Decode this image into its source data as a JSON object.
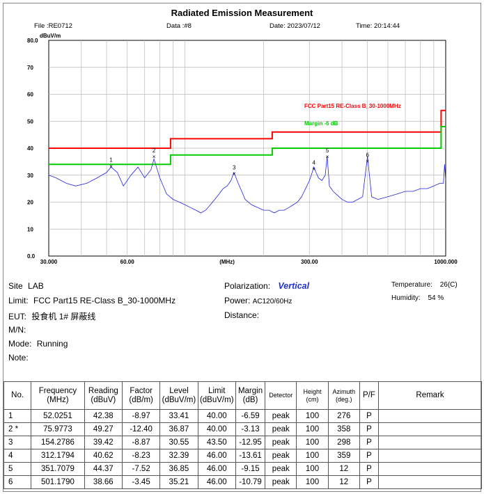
{
  "title": "Radiated Emission Measurement",
  "header": {
    "file": "File :RE0712",
    "data": "Data :#8",
    "date": "Date: 2023/07/12",
    "time": "Time: 20:14:44"
  },
  "chart_data": {
    "type": "line",
    "title": "Radiated Emission Measurement",
    "ylabel": "dBuV/m",
    "xlabel": "(MHz)",
    "x_scale": "log",
    "xlim": [
      30,
      1000
    ],
    "ylim": [
      0,
      80
    ],
    "yticks": [
      0,
      10,
      20,
      30,
      40,
      50,
      60,
      70,
      80
    ],
    "ytick_labels": [
      "0.0",
      "10",
      "20",
      "30",
      "40",
      "50",
      "60",
      "70",
      "80.0"
    ],
    "xticks": [
      30,
      60,
      300,
      1000
    ],
    "xtick_labels": [
      "30.000",
      "60.00",
      "300.00",
      "1000.000"
    ],
    "grid": true,
    "series": [
      {
        "name": "FCC Part15 RE-Class B_30-1000MHz",
        "color": "#ff0000",
        "x": [
          30,
          88,
          88,
          216,
          216,
          960,
          960,
          1000
        ],
        "y": [
          40,
          40,
          43.5,
          43.5,
          46,
          46,
          54,
          54
        ]
      },
      {
        "name": "Margin -6 dB",
        "color": "#00cc00",
        "x": [
          30,
          88,
          88,
          216,
          216,
          960,
          960,
          1000
        ],
        "y": [
          34,
          34,
          37.5,
          37.5,
          40,
          40,
          48,
          48
        ]
      },
      {
        "name": "",
        "color": "#2222dd",
        "x": [
          30,
          32,
          35,
          38,
          42,
          46,
          50,
          52,
          55,
          58,
          62,
          66,
          70,
          74,
          76,
          80,
          85,
          90,
          95,
          100,
          105,
          110,
          115,
          120,
          125,
          130,
          135,
          140,
          145,
          150,
          154,
          160,
          165,
          170,
          180,
          190,
          200,
          210,
          220,
          230,
          240,
          250,
          260,
          270,
          280,
          290,
          300,
          305,
          312,
          318,
          325,
          335,
          345,
          351,
          358,
          370,
          380,
          390,
          400,
          420,
          440,
          460,
          480,
          501,
          520,
          550,
          600,
          650,
          700,
          750,
          800,
          850,
          900,
          950,
          980,
          990,
          1000
        ],
        "y": [
          30,
          29,
          27,
          26,
          27,
          29,
          31,
          33,
          31,
          26,
          30,
          33,
          29,
          32,
          36,
          29,
          23,
          21,
          20,
          19,
          18,
          17,
          16,
          17,
          19,
          21,
          23,
          25,
          26,
          28,
          31,
          27,
          24,
          21,
          19,
          18,
          17,
          17,
          16,
          17,
          17,
          18,
          19,
          20,
          22,
          25,
          28,
          30,
          33,
          31,
          29,
          28,
          30,
          37,
          26,
          24,
          23,
          22,
          21,
          20,
          20,
          21,
          22,
          37,
          22,
          21,
          22,
          23,
          24,
          24,
          25,
          25,
          26,
          27,
          27,
          34,
          28
        ]
      }
    ],
    "markers": [
      {
        "label": "1",
        "x": 52.0251,
        "y": 33.41
      },
      {
        "label": "2",
        "x": 75.9773,
        "y": 36.87
      },
      {
        "label": "3",
        "x": 154.2786,
        "y": 30.55
      },
      {
        "label": "4",
        "x": 312.1794,
        "y": 32.39
      },
      {
        "label": "5",
        "x": 351.7079,
        "y": 36.85
      },
      {
        "label": "6",
        "x": 501.179,
        "y": 35.21
      }
    ],
    "legend": [
      "FCC Part15 RE-Class B_30-1000MHz",
      "Margin -6 dB"
    ],
    "legend_position": "right"
  },
  "info": {
    "site_label": "Site",
    "site": "LAB",
    "limit_label": "Limit:",
    "limit": "FCC Part15 RE-Class B_30-1000MHz",
    "eut_label": "EUT:",
    "eut": "投食机 1# 屏蔽线",
    "mn_label": "M/N:",
    "mode_label": "Mode:",
    "mode": "Running",
    "note_label": "Note:",
    "polarization_label": "Polarization:",
    "polarization": "Vertical",
    "power_label": "Power:",
    "power": "AC120/60Hz",
    "distance_label": "Distance:",
    "temperature_label": "Temperature:",
    "temperature": "26(C)",
    "humidity_label": "Humidity:",
    "humidity": "54 %"
  },
  "table": {
    "headers": [
      "No.",
      "Frequency (MHz)",
      "Reading (dBuV)",
      "Factor (dB/m)",
      "Level (dBuV/m)",
      "Limit (dBuV/m)",
      "Margin (dB)",
      "Detector",
      "Height (cm)",
      "Azimuth (deg.)",
      "P/F",
      "Remark"
    ],
    "rows": [
      [
        "1",
        "52.0251",
        "42.38",
        "-8.97",
        "33.41",
        "40.00",
        "-6.59",
        "peak",
        "100",
        "276",
        "P",
        ""
      ],
      [
        "2 *",
        "75.9773",
        "49.27",
        "-12.40",
        "36.87",
        "40.00",
        "-3.13",
        "peak",
        "100",
        "358",
        "P",
        ""
      ],
      [
        "3",
        "154.2786",
        "39.42",
        "-8.87",
        "30.55",
        "43.50",
        "-12.95",
        "peak",
        "100",
        "298",
        "P",
        ""
      ],
      [
        "4",
        "312.1794",
        "40.62",
        "-8.23",
        "32.39",
        "46.00",
        "-13.61",
        "peak",
        "100",
        "359",
        "P",
        ""
      ],
      [
        "5",
        "351.7079",
        "44.37",
        "-7.52",
        "36.85",
        "46.00",
        "-9.15",
        "peak",
        "100",
        "12",
        "P",
        ""
      ],
      [
        "6",
        "501.1790",
        "38.66",
        "-3.45",
        "35.21",
        "46.00",
        "-10.79",
        "peak",
        "100",
        "12",
        "P",
        ""
      ]
    ]
  }
}
